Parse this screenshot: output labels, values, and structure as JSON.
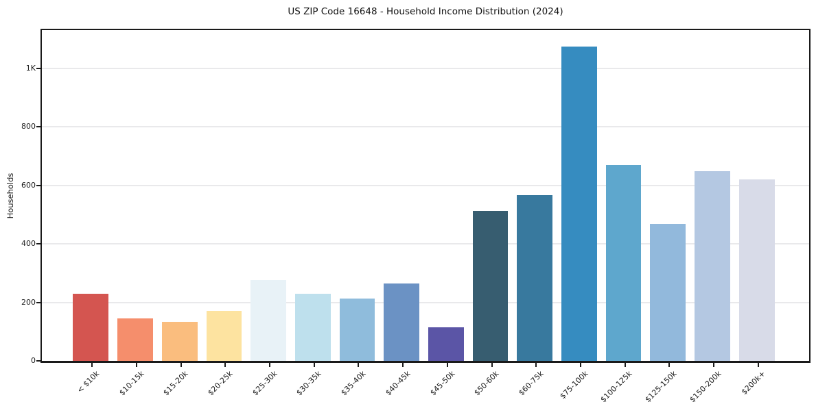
{
  "figure": {
    "background": "#ffffff"
  },
  "chart_data": {
    "type": "bar",
    "title": "US ZIP Code 16648 - Household Income Distribution (2024)",
    "xlabel": "",
    "ylabel": "Households",
    "categories": [
      "< $10k",
      "$10-15k",
      "$15-20k",
      "$20-25k",
      "$25-30k",
      "$30-35k",
      "$35-40k",
      "$40-45k",
      "$45-50k",
      "$50-60k",
      "$60-75k",
      "$75-100k",
      "$100-125k",
      "$125-150k",
      "$150-200k",
      "$200k+"
    ],
    "values": [
      230,
      145,
      133,
      170,
      277,
      230,
      213,
      265,
      115,
      513,
      566,
      1075,
      670,
      468,
      648,
      620
    ],
    "bar_colors": [
      "#d45550",
      "#f58e6c",
      "#fabd7e",
      "#fde3a0",
      "#e8f2f7",
      "#bee0ed",
      "#8fbcdc",
      "#6b92c4",
      "#5b55a6",
      "#375d70",
      "#38799e",
      "#368cc0",
      "#5ea7cd",
      "#92b9dc",
      "#b4c8e2",
      "#d8dbe8"
    ],
    "ylim": [
      0,
      1130
    ],
    "yticks": {
      "values": [
        0,
        200,
        400,
        600,
        800,
        1000
      ],
      "labels": [
        "0",
        "200",
        "400",
        "600",
        "800",
        "1K"
      ]
    },
    "grid": "horizontal",
    "legend": "none",
    "x_tick_rotation_deg": 45
  }
}
